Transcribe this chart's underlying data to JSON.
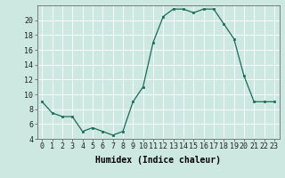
{
  "x": [
    0,
    1,
    2,
    3,
    4,
    5,
    6,
    7,
    8,
    9,
    10,
    11,
    12,
    13,
    14,
    15,
    16,
    17,
    18,
    19,
    20,
    21,
    22,
    23
  ],
  "y": [
    9,
    7.5,
    7,
    7,
    5,
    5.5,
    5,
    4.5,
    5,
    9,
    11,
    17,
    20.5,
    21.5,
    21.5,
    21,
    21.5,
    21.5,
    19.5,
    17.5,
    12.5,
    9,
    9,
    9
  ],
  "line_color": "#1a6b5a",
  "marker_color": "#1a6b5a",
  "bg_color": "#cce8e0",
  "grid_color": "#ffffff",
  "xlabel": "Humidex (Indice chaleur)",
  "ylim": [
    4,
    22
  ],
  "xlim": [
    -0.5,
    23.5
  ],
  "yticks": [
    4,
    6,
    8,
    10,
    12,
    14,
    16,
    18,
    20
  ],
  "xticks": [
    0,
    1,
    2,
    3,
    4,
    5,
    6,
    7,
    8,
    9,
    10,
    11,
    12,
    13,
    14,
    15,
    16,
    17,
    18,
    19,
    20,
    21,
    22,
    23
  ],
  "xtick_labels": [
    "0",
    "1",
    "2",
    "3",
    "4",
    "5",
    "6",
    "7",
    "8",
    "9",
    "10",
    "11",
    "12",
    "13",
    "14",
    "15",
    "16",
    "17",
    "18",
    "19",
    "20",
    "21",
    "22",
    "23"
  ],
  "label_fontsize": 7,
  "tick_fontsize": 6
}
